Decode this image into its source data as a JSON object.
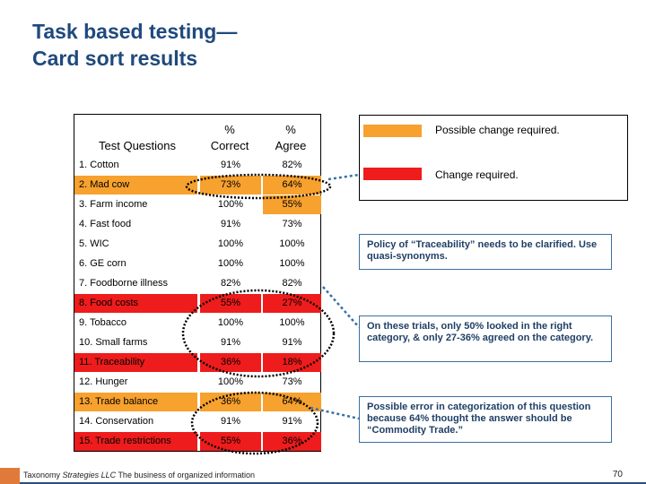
{
  "title": {
    "line1": "Task based testing—",
    "line2": "Card sort results"
  },
  "table": {
    "headers": {
      "question": "Test Questions",
      "correct_line1": "%",
      "correct_line2": "Correct",
      "agree_line1": "%",
      "agree_line2": "Agree"
    },
    "rows": [
      {
        "question": "1. Cotton",
        "correct": "91%",
        "agree": "82%",
        "highlight": "none"
      },
      {
        "question": "2. Mad cow",
        "correct": "73%",
        "agree": "64%",
        "highlight": "orange"
      },
      {
        "question": "3. Farm income",
        "correct": "100%",
        "agree": "55%",
        "highlight": "agree-orange"
      },
      {
        "question": "4. Fast food",
        "correct": "91%",
        "agree": "73%",
        "highlight": "none"
      },
      {
        "question": "5. WIC",
        "correct": "100%",
        "agree": "100%",
        "highlight": "none"
      },
      {
        "question": "6. GE corn",
        "correct": "100%",
        "agree": "100%",
        "highlight": "none"
      },
      {
        "question": "7. Foodborne illness",
        "correct": "82%",
        "agree": "82%",
        "highlight": "none"
      },
      {
        "question": "8. Food costs",
        "correct": "55%",
        "agree": "27%",
        "highlight": "red"
      },
      {
        "question": "9. Tobacco",
        "correct": "100%",
        "agree": "100%",
        "highlight": "none"
      },
      {
        "question": "10. Small farms",
        "correct": "91%",
        "agree": "91%",
        "highlight": "none"
      },
      {
        "question": "11. Traceability",
        "correct": "36%",
        "agree": "18%",
        "highlight": "red"
      },
      {
        "question": "12. Hunger",
        "correct": "100%",
        "agree": "73%",
        "highlight": "none"
      },
      {
        "question": "13. Trade balance",
        "correct": "36%",
        "agree": "64%",
        "highlight": "orange"
      },
      {
        "question": "14. Conservation",
        "correct": "91%",
        "agree": "91%",
        "highlight": "none"
      },
      {
        "question": "15. Trade restrictions",
        "correct": "55%",
        "agree": "36%",
        "highlight": "red"
      }
    ]
  },
  "legend": {
    "possible_change": "Possible change required.",
    "change": "Change required.",
    "possible_color": "#f7a12e",
    "change_color": "#ee1c1c"
  },
  "notes": [
    "Policy of “Traceability” needs to be clarified. Use quasi-synonyms.",
    "On these trials, only 50% looked in the right category, & only 27-36% agreed on the category.",
    "Possible error in categorization of this question because 64% thought the answer should be “Commodity Trade.”"
  ],
  "footer": {
    "company": "Taxonomy",
    "company_italic": "Strategies LLC",
    "tagline": "The business of organized information",
    "page_number": "70"
  }
}
